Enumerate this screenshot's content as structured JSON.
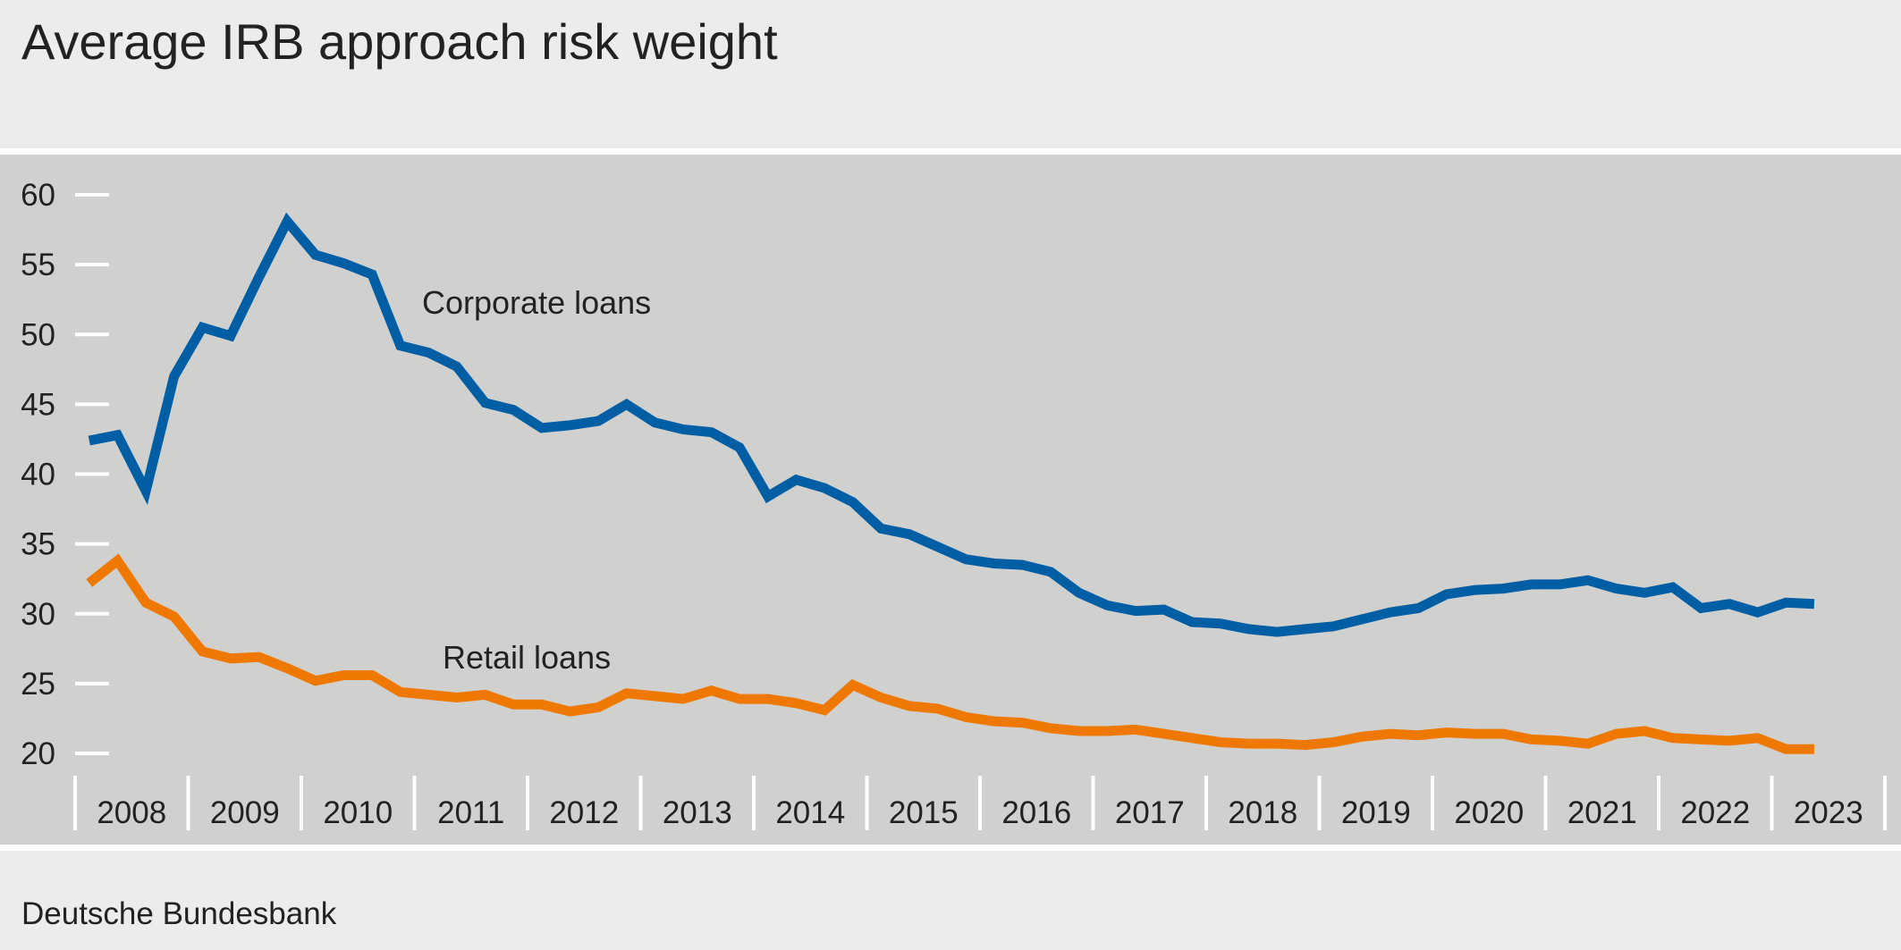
{
  "title": "Average IRB approach risk weight",
  "source": "Deutsche Bundesbank",
  "chart_data": {
    "type": "line",
    "title": "Average IRB approach risk weight",
    "xlabel": "",
    "ylabel": "",
    "frequency": "quarterly",
    "x_start": "2008 Q1",
    "x_end": "2023 Q2",
    "x_tick_labels": [
      "2008",
      "2009",
      "2010",
      "2011",
      "2012",
      "2013",
      "2014",
      "2015",
      "2016",
      "2017",
      "2018",
      "2019",
      "2020",
      "2021",
      "2022",
      "2023"
    ],
    "y_ticks": [
      20,
      25,
      30,
      35,
      40,
      45,
      50,
      55,
      60
    ],
    "ylim": [
      20,
      60
    ],
    "grid": false,
    "legend": "inline labels",
    "series": [
      {
        "name": "Corporate loans",
        "color": "#005ea5",
        "values": [
          42.4,
          42.8,
          38.8,
          47.0,
          50.5,
          49.9,
          54.1,
          58.1,
          55.7,
          55.1,
          54.3,
          49.2,
          48.7,
          47.7,
          45.1,
          44.6,
          43.3,
          43.5,
          43.8,
          45.0,
          43.7,
          43.2,
          43.0,
          41.9,
          38.4,
          39.6,
          39.0,
          38.0,
          36.1,
          35.7,
          34.8,
          33.9,
          33.6,
          33.5,
          33.0,
          31.5,
          30.6,
          30.2,
          30.3,
          29.4,
          29.3,
          28.9,
          28.7,
          28.9,
          29.1,
          29.6,
          30.1,
          30.4,
          31.4,
          31.7,
          31.8,
          32.1,
          32.1,
          32.4,
          31.8,
          31.5,
          31.9,
          30.4,
          30.7,
          30.1,
          30.8,
          30.7
        ]
      },
      {
        "name": "Retail loans",
        "color": "#ef7800",
        "values": [
          32.2,
          33.8,
          30.8,
          29.8,
          27.3,
          26.8,
          26.9,
          26.1,
          25.2,
          25.6,
          25.6,
          24.4,
          24.2,
          24.0,
          24.2,
          23.5,
          23.5,
          23.0,
          23.3,
          24.3,
          24.1,
          23.9,
          24.5,
          23.9,
          23.9,
          23.6,
          23.1,
          24.9,
          24.0,
          23.4,
          23.2,
          22.6,
          22.3,
          22.2,
          21.8,
          21.6,
          21.6,
          21.7,
          21.4,
          21.1,
          20.8,
          20.7,
          20.7,
          20.6,
          20.8,
          21.2,
          21.4,
          21.3,
          21.5,
          21.4,
          21.4,
          21.0,
          20.9,
          20.7,
          21.4,
          21.6,
          21.1,
          21.0,
          20.9,
          21.1,
          20.3,
          20.3
        ]
      }
    ],
    "colors": {
      "plot_background": "#d0d0ce",
      "page_background": "#ececec"
    }
  }
}
